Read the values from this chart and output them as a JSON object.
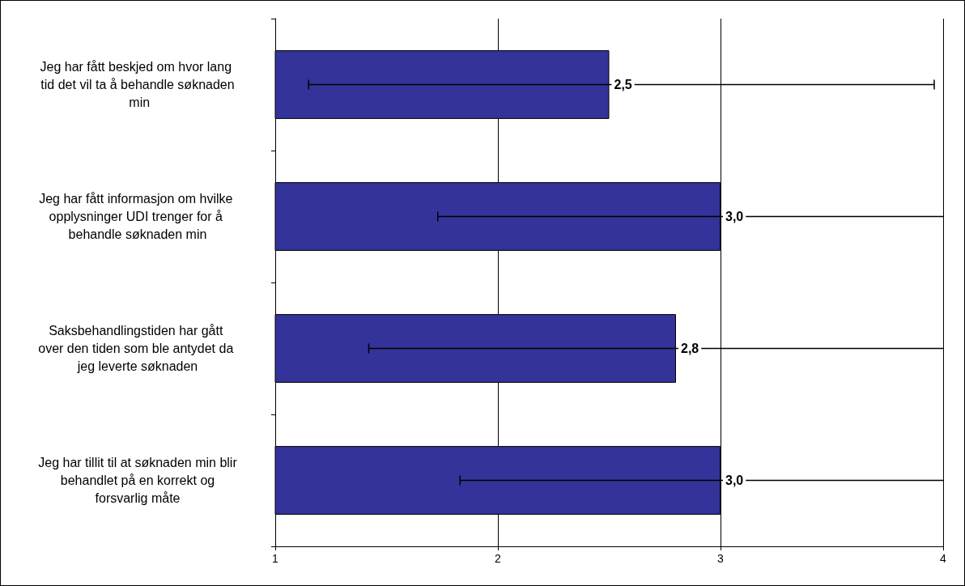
{
  "chart_data": {
    "type": "bar",
    "orientation": "horizontal",
    "categories": [
      "Jeg har fått beskjed om hvor lang tid det vil ta å behandle søknaden min",
      "Jeg har fått informasjon om hvilke opplysninger UDI trenger for å behandle søknaden min",
      "Saksbehandlingstiden har gått over den tiden som ble antydet da jeg leverte søknaden",
      "Jeg har tillit til at søknaden min blir behandlet på en korrekt og forsvarlig måte"
    ],
    "values": [
      2.5,
      3.0,
      2.8,
      3.0
    ],
    "errors": [
      [
        1.15,
        3.96
      ],
      [
        1.73,
        4
      ],
      [
        1.42,
        4
      ],
      [
        1.83,
        4
      ]
    ],
    "color": "#333399",
    "xlim": [
      1,
      4
    ],
    "xticks": [
      1,
      2,
      3,
      4
    ],
    "value_labels": [
      "2,5",
      "3,0",
      "2,8",
      "3,0"
    ],
    "grid": "x"
  }
}
